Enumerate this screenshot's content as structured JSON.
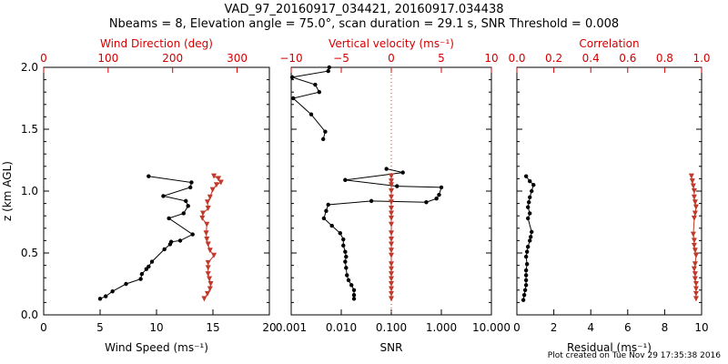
{
  "header": {
    "title": "VAD_97_20160917_034421, 20160917.034438",
    "subtitle": "Nbeams = 8, Elevation angle = 75.0°, scan duration = 29.1 s, SNR Threshold = 0.008"
  },
  "footer": {
    "text": "Plot created on Tue Nov 29 17:35:38 2016"
  },
  "colors": {
    "black": "#000000",
    "red": "#c0392b",
    "redAxis": "#d40000"
  },
  "chart_data": [
    {
      "type": "line",
      "panel": "left",
      "ylabel": "z (km AGL)",
      "ylim": [
        0,
        2
      ],
      "yticks": [
        "0.0",
        "0.5",
        "1.0",
        "1.5",
        "2.0"
      ],
      "bottom_axis": {
        "label": "Wind Speed (ms⁻¹)",
        "range": [
          0,
          20
        ],
        "ticks": [
          "0",
          "5",
          "10",
          "15",
          "20"
        ]
      },
      "top_axis": {
        "label": "Wind Direction (deg)",
        "range": [
          0,
          350
        ],
        "ticks": [
          "0",
          "100",
          "200",
          "300"
        ]
      },
      "series": [
        {
          "axis": "bottom",
          "color": "black",
          "marker": "dot",
          "points": [
            [
              5.0,
              0.13
            ],
            [
              5.5,
              0.15
            ],
            [
              6.1,
              0.19
            ],
            [
              7.3,
              0.25
            ],
            [
              8.6,
              0.29
            ],
            [
              8.7,
              0.33
            ],
            [
              9.1,
              0.37
            ],
            [
              9.3,
              0.39
            ],
            [
              9.6,
              0.43
            ],
            [
              10.7,
              0.53
            ],
            [
              11.2,
              0.57
            ],
            [
              11.3,
              0.59
            ],
            [
              12.1,
              0.6
            ],
            [
              13.2,
              0.65
            ],
            [
              11.1,
              0.78
            ],
            [
              12.4,
              0.82
            ],
            [
              12.8,
              0.88
            ],
            [
              12.6,
              0.92
            ],
            [
              10.6,
              0.96
            ],
            [
              13.0,
              1.03
            ],
            [
              13.1,
              1.07
            ],
            [
              9.3,
              1.12
            ]
          ]
        },
        {
          "axis": "top",
          "color": "red",
          "marker": "triangle",
          "points": [
            [
              249,
              0.13
            ],
            [
              254,
              0.17
            ],
            [
              258,
              0.21
            ],
            [
              259,
              0.25
            ],
            [
              257,
              0.29
            ],
            [
              255,
              0.33
            ],
            [
              255,
              0.38
            ],
            [
              255,
              0.42
            ],
            [
              264,
              0.48
            ],
            [
              258,
              0.52
            ],
            [
              255,
              0.57
            ],
            [
              253,
              0.61
            ],
            [
              252,
              0.66
            ],
            [
              253,
              0.73
            ],
            [
              246,
              0.78
            ],
            [
              247,
              0.82
            ],
            [
              255,
              0.86
            ],
            [
              254,
              0.91
            ],
            [
              258,
              0.95
            ],
            [
              262,
              1.01
            ],
            [
              268,
              1.05
            ],
            [
              275,
              1.07
            ],
            [
              271,
              1.1
            ],
            [
              264,
              1.12
            ]
          ]
        }
      ]
    },
    {
      "type": "line",
      "panel": "middle",
      "ylim": [
        0,
        2
      ],
      "bottom_axis": {
        "label": "SNR",
        "scale": "log",
        "range": [
          0.001,
          10
        ],
        "ticks": [
          "0.001",
          "0.010",
          "0.100",
          "1.000",
          "10.000"
        ]
      },
      "top_axis": {
        "label": "Vertical velocity (ms⁻¹)",
        "range": [
          -10,
          10
        ],
        "ticks": [
          "−10",
          "−5",
          "0",
          "5",
          "10"
        ]
      },
      "reference_line": {
        "axis": "bottom",
        "value": 0.1,
        "style": "dotted",
        "color": "red"
      },
      "series": [
        {
          "axis": "bottom",
          "color": "black",
          "marker": "dot",
          "points": [
            [
              0.018,
              0.13
            ],
            [
              0.018,
              0.16
            ],
            [
              0.018,
              0.2
            ],
            [
              0.016,
              0.24
            ],
            [
              0.014,
              0.28
            ],
            [
              0.013,
              0.32
            ],
            [
              0.0125,
              0.38
            ],
            [
              0.012,
              0.43
            ],
            [
              0.0125,
              0.47
            ],
            [
              0.012,
              0.51
            ],
            [
              0.011,
              0.56
            ],
            [
              0.011,
              0.61
            ],
            [
              0.0095,
              0.66
            ],
            [
              0.0065,
              0.72
            ],
            [
              0.0045,
              0.78
            ],
            [
              0.005,
              0.84
            ],
            [
              0.0055,
              0.89
            ],
            [
              0.04,
              0.92
            ],
            [
              0.5,
              0.91
            ],
            [
              0.8,
              0.94
            ],
            [
              0.9,
              0.97
            ],
            [
              1.0,
              1.03
            ],
            [
              0.13,
              1.04
            ],
            [
              0.012,
              1.09
            ],
            [
              0.17,
              1.15
            ],
            [
              0.08,
              1.18
            ]
          ]
        },
        {
          "axis": "top",
          "color": "black",
          "marker": "dot",
          "points": [
            [
              -6.8,
              1.42
            ],
            [
              -6.6,
              1.48
            ],
            [
              -8.0,
              1.62
            ],
            [
              -9.8,
              1.75
            ],
            [
              -7.2,
              1.8
            ],
            [
              -7.6,
              1.86
            ],
            [
              -9.9,
              1.92
            ],
            [
              -6.3,
              1.97
            ],
            [
              -6.2,
              2.0
            ]
          ]
        },
        {
          "axis": "bottom",
          "color": "red",
          "marker": "triangle",
          "points": [
            [
              0.1,
              0.13
            ],
            [
              0.1,
              0.17
            ],
            [
              0.1,
              0.21
            ],
            [
              0.1,
              0.25
            ],
            [
              0.1,
              0.29
            ],
            [
              0.1,
              0.33
            ],
            [
              0.1,
              0.37
            ],
            [
              0.1,
              0.41
            ],
            [
              0.1,
              0.48
            ],
            [
              0.1,
              0.52
            ],
            [
              0.1,
              0.57
            ],
            [
              0.1,
              0.61
            ],
            [
              0.1,
              0.66
            ],
            [
              0.1,
              0.73
            ],
            [
              0.1,
              0.78
            ],
            [
              0.1,
              0.82
            ],
            [
              0.1,
              0.86
            ],
            [
              0.1,
              0.91
            ],
            [
              0.1,
              0.95
            ],
            [
              0.1,
              1.0
            ],
            [
              0.1,
              1.05
            ],
            [
              0.1,
              1.08
            ],
            [
              0.1,
              1.12
            ]
          ]
        }
      ]
    },
    {
      "type": "line",
      "panel": "right",
      "ylim": [
        0,
        2
      ],
      "bottom_axis": {
        "label": "Residual (ms⁻¹)",
        "range": [
          0,
          10
        ],
        "ticks": [
          "0",
          "2",
          "4",
          "6",
          "8",
          "10"
        ]
      },
      "top_axis": {
        "label": "Correlation",
        "range": [
          0,
          1
        ],
        "ticks": [
          "0.0",
          "0.2",
          "0.4",
          "0.6",
          "0.8",
          "1.0"
        ]
      },
      "series": [
        {
          "axis": "bottom",
          "color": "black",
          "marker": "dot",
          "points": [
            [
              0.35,
              0.12
            ],
            [
              0.4,
              0.16
            ],
            [
              0.45,
              0.2
            ],
            [
              0.5,
              0.24
            ],
            [
              0.5,
              0.28
            ],
            [
              0.5,
              0.32
            ],
            [
              0.5,
              0.36
            ],
            [
              0.55,
              0.41
            ],
            [
              0.5,
              0.47
            ],
            [
              0.55,
              0.51
            ],
            [
              0.6,
              0.55
            ],
            [
              0.7,
              0.6
            ],
            [
              0.75,
              0.63
            ],
            [
              0.8,
              0.67
            ],
            [
              0.6,
              0.78
            ],
            [
              0.7,
              0.82
            ],
            [
              0.6,
              0.87
            ],
            [
              0.65,
              0.91
            ],
            [
              0.7,
              0.95
            ],
            [
              0.8,
              1.0
            ],
            [
              0.9,
              1.05
            ],
            [
              0.7,
              1.08
            ],
            [
              0.5,
              1.12
            ]
          ]
        },
        {
          "axis": "top",
          "color": "red",
          "marker": "triangle",
          "points": [
            [
              0.97,
              0.13
            ],
            [
              0.97,
              0.17
            ],
            [
              0.97,
              0.21
            ],
            [
              0.97,
              0.25
            ],
            [
              0.965,
              0.29
            ],
            [
              0.965,
              0.33
            ],
            [
              0.96,
              0.37
            ],
            [
              0.965,
              0.41
            ],
            [
              0.97,
              0.48
            ],
            [
              0.965,
              0.52
            ],
            [
              0.96,
              0.56
            ],
            [
              0.96,
              0.6
            ],
            [
              0.955,
              0.65
            ],
            [
              0.96,
              0.78
            ],
            [
              0.965,
              0.82
            ],
            [
              0.97,
              0.87
            ],
            [
              0.965,
              0.91
            ],
            [
              0.96,
              0.95
            ],
            [
              0.96,
              1.0
            ],
            [
              0.955,
              1.04
            ],
            [
              0.95,
              1.08
            ],
            [
              0.945,
              1.12
            ]
          ]
        }
      ]
    }
  ]
}
